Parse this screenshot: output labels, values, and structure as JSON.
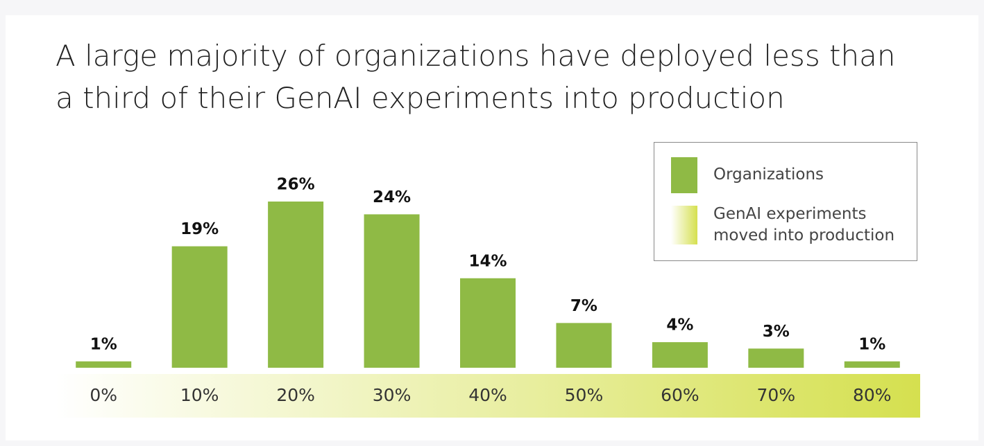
{
  "chart_data": {
    "type": "bar",
    "title": "A large majority of organizations have deployed less than a third of their GenAI experiments into production",
    "categories": [
      "0%",
      "10%",
      "20%",
      "30%",
      "40%",
      "50%",
      "60%",
      "70%",
      "80%"
    ],
    "series": [
      {
        "name": "Organizations",
        "color": "#8fba45",
        "values": [
          1,
          19,
          26,
          24,
          14,
          7,
          4,
          3,
          1
        ],
        "value_labels": [
          "1%",
          "19%",
          "26%",
          "24%",
          "14%",
          "7%",
          "4%",
          "3%",
          "1%"
        ]
      }
    ],
    "band": {
      "name": "GenAI experiments moved into production",
      "colors": [
        "#ffffff",
        "#d5e04f"
      ]
    },
    "legend": "top-right"
  }
}
